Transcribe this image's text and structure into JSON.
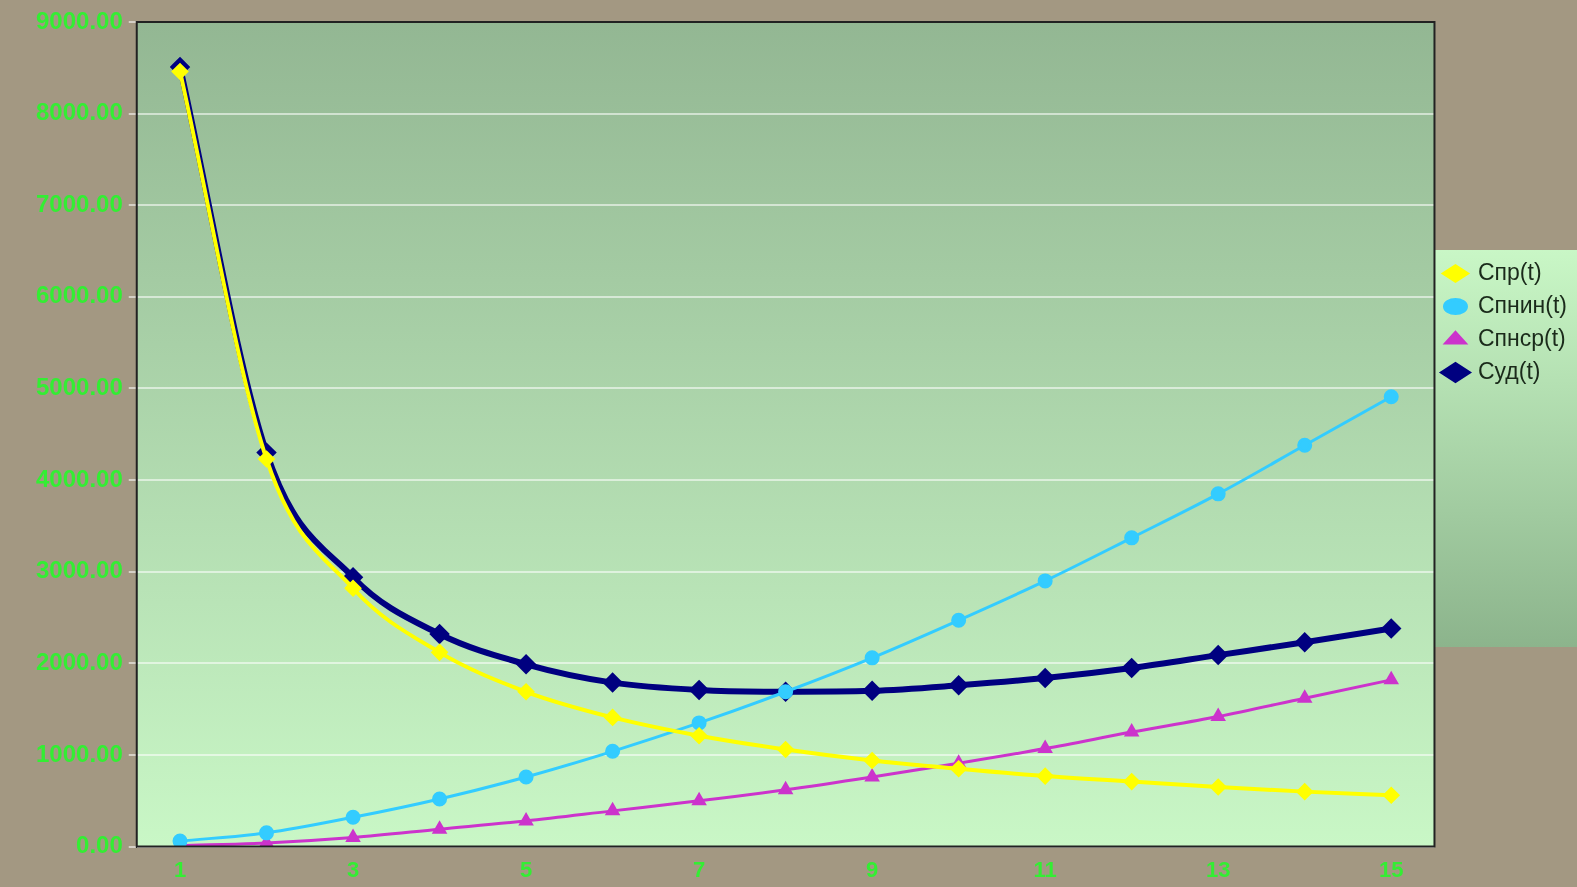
{
  "chart_data": {
    "type": "line",
    "categories": [
      "1",
      null,
      "3",
      null,
      "5",
      null,
      "7",
      null,
      "9",
      null,
      "11",
      null,
      "13",
      null,
      "15"
    ],
    "series": [
      {
        "name": "Спр(t)",
        "color": "#ffff00",
        "marker": "diamond",
        "values": [
          8460,
          4230,
          2820,
          2120,
          1690,
          1410,
          1210,
          1060,
          940,
          850,
          770,
          710,
          650,
          600,
          560
        ]
      },
      {
        "name": "Спнин(t)",
        "color": "#33ccff",
        "marker": "circle",
        "values": [
          60,
          150,
          320,
          520,
          760,
          1040,
          1350,
          1690,
          2060,
          2470,
          2900,
          3370,
          3850,
          4380,
          4910
        ]
      },
      {
        "name": "Спнср(t)",
        "color": "#cc33cc",
        "marker": "triangle",
        "values": [
          10,
          40,
          100,
          190,
          280,
          390,
          500,
          620,
          760,
          910,
          1070,
          1250,
          1420,
          1620,
          1820
        ]
      },
      {
        "name": "Суд(t)",
        "color": "#000080",
        "marker": "diamond",
        "values": [
          8510,
          4300,
          2940,
          2320,
          1990,
          1790,
          1710,
          1690,
          1700,
          1760,
          1840,
          1950,
          2090,
          2230,
          2380
        ]
      }
    ],
    "ylim": [
      0,
      9000
    ],
    "yticks": [
      {
        "value": 0,
        "label": "0.00"
      },
      {
        "value": 1000,
        "label": "1000.00"
      },
      {
        "value": 2000,
        "label": "2000.00"
      },
      {
        "value": 3000,
        "label": "3000.00"
      },
      {
        "value": 4000,
        "label": "4000.00"
      },
      {
        "value": 5000,
        "label": "5000.00"
      },
      {
        "value": 6000,
        "label": "6000.00"
      },
      {
        "value": 7000,
        "label": "7000.00"
      },
      {
        "value": 8000,
        "label": "8000.00"
      },
      {
        "value": 9000,
        "label": "9000.00"
      }
    ],
    "grid": "y",
    "legend": "right",
    "line_style": "solid"
  }
}
